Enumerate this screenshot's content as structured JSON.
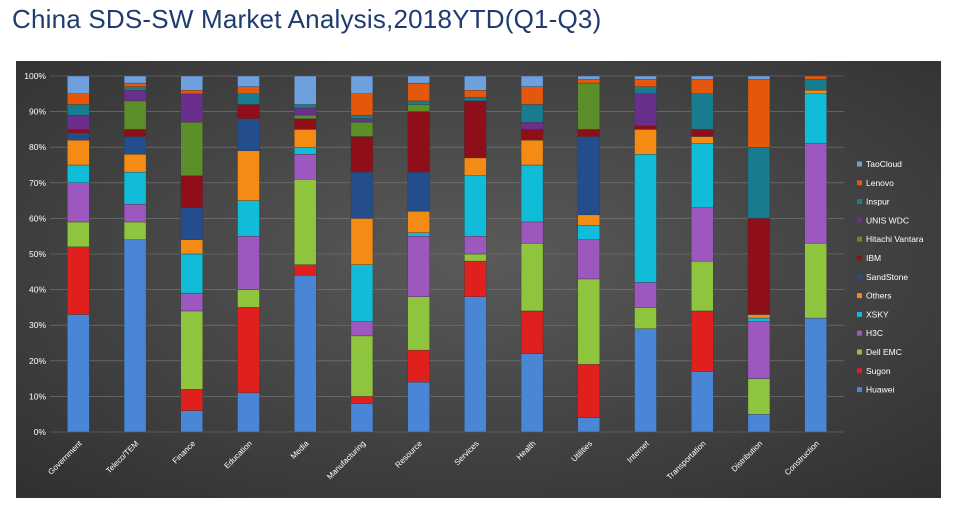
{
  "title": "China SDS-SW Market Analysis,2018YTD(Q1-Q3)",
  "chart_data": {
    "type": "bar",
    "stacked": true,
    "percent": true,
    "title": "China SDS-SW Market Analysis,2018YTD(Q1-Q3)",
    "xlabel": "",
    "ylabel": "",
    "ylim": [
      0,
      100
    ],
    "yticks": [
      "0%",
      "10%",
      "20%",
      "30%",
      "40%",
      "50%",
      "60%",
      "70%",
      "80%",
      "90%",
      "100%"
    ],
    "grid": true,
    "legend_position": "right",
    "background": "dark",
    "categories": [
      "Government",
      "Teleco/TEM",
      "Finance",
      "Education",
      "Media",
      "Manufacturing",
      "Resource",
      "Services",
      "Health",
      "Utilities",
      "Internet",
      "Transportation",
      "Distribution",
      "Construction"
    ],
    "series": [
      {
        "name": "Huawei",
        "color": "#4a86d6",
        "values": [
          33,
          54,
          6,
          11,
          44,
          8,
          14,
          38,
          22,
          4,
          29,
          17,
          5,
          32
        ]
      },
      {
        "name": "Sugon",
        "color": "#e0201e",
        "values": [
          19,
          0,
          6,
          24,
          3,
          2,
          9,
          10,
          12,
          15,
          0,
          17,
          0,
          0
        ]
      },
      {
        "name": "Dell EMC",
        "color": "#8fc43e",
        "values": [
          7,
          5,
          22,
          5,
          24,
          17,
          15,
          2,
          19,
          24,
          6,
          14,
          10,
          21
        ]
      },
      {
        "name": "H3C",
        "color": "#9c58be",
        "values": [
          11,
          5,
          5,
          15,
          7,
          4,
          17,
          5,
          6,
          11,
          7,
          15,
          16,
          28
        ]
      },
      {
        "name": "XSKY",
        "color": "#11bcd8",
        "values": [
          5,
          9,
          11,
          10,
          2,
          16,
          1,
          17,
          16,
          4,
          36,
          18,
          1,
          14
        ]
      },
      {
        "name": "Others",
        "color": "#f48b14",
        "values": [
          7,
          5,
          4,
          14,
          5,
          13,
          6,
          5,
          7,
          3,
          7,
          2,
          1,
          1
        ]
      },
      {
        "name": "SandStone",
        "color": "#234d8c",
        "values": [
          2,
          5,
          9,
          9,
          0,
          13,
          11,
          0,
          0,
          22,
          0,
          0,
          0,
          0
        ]
      },
      {
        "name": "IBM",
        "color": "#8e0e1a",
        "values": [
          1,
          2,
          9,
          4,
          3,
          10,
          17,
          16,
          3,
          2,
          1,
          2,
          27,
          0
        ]
      },
      {
        "name": "Hitachi Vantara",
        "color": "#5b8f29",
        "values": [
          0,
          8,
          15,
          0,
          1,
          4,
          2,
          0,
          0,
          13,
          0,
          0,
          0,
          0
        ]
      },
      {
        "name": "UNIS WDC",
        "color": "#6a2f8c",
        "values": [
          4,
          3,
          8,
          0,
          2,
          1,
          0,
          0,
          2,
          0,
          9,
          0,
          0,
          0
        ]
      },
      {
        "name": "Inspur",
        "color": "#167c8e",
        "values": [
          3,
          1,
          0,
          3,
          1,
          1,
          1,
          1,
          5,
          0,
          2,
          10,
          20,
          3
        ]
      },
      {
        "name": "Lenovo",
        "color": "#e4580c",
        "values": [
          3,
          1,
          1,
          2,
          0,
          6,
          5,
          2,
          5,
          1,
          2,
          4,
          19,
          1
        ]
      },
      {
        "name": "TaoCloud",
        "color": "#6fa0de",
        "values": [
          5,
          2,
          4,
          3,
          8,
          5,
          2,
          4,
          3,
          1,
          1,
          1,
          1,
          0
        ]
      }
    ]
  }
}
